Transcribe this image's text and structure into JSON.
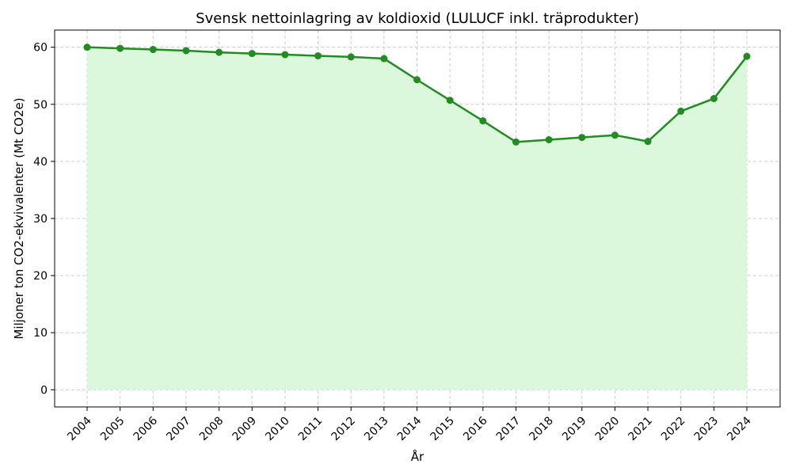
{
  "chart_data": {
    "type": "area",
    "title": "Svensk nettoinlagring av koldioxid (LULUCF inkl. träprodukter)",
    "xlabel": "År",
    "ylabel": "Miljoner ton CO2-ekvivalenter (Mt CO2e)",
    "x": [
      "2004",
      "2005",
      "2006",
      "2007",
      "2008",
      "2009",
      "2010",
      "2011",
      "2012",
      "2013",
      "2014",
      "2015",
      "2016",
      "2017",
      "2018",
      "2019",
      "2020",
      "2021",
      "2022",
      "2023",
      "2024"
    ],
    "values": [
      60.0,
      59.8,
      59.6,
      59.4,
      59.1,
      58.9,
      58.7,
      58.5,
      58.3,
      58.0,
      54.3,
      50.7,
      47.1,
      43.4,
      43.8,
      44.2,
      44.6,
      43.5,
      48.8,
      51.0,
      58.4
    ],
    "yticks": [
      0,
      10,
      20,
      30,
      40,
      50,
      60
    ],
    "ylim": [
      -3,
      63
    ],
    "grid": true,
    "colors": {
      "line": "#228b22",
      "fill": "#dcf8dc"
    }
  }
}
